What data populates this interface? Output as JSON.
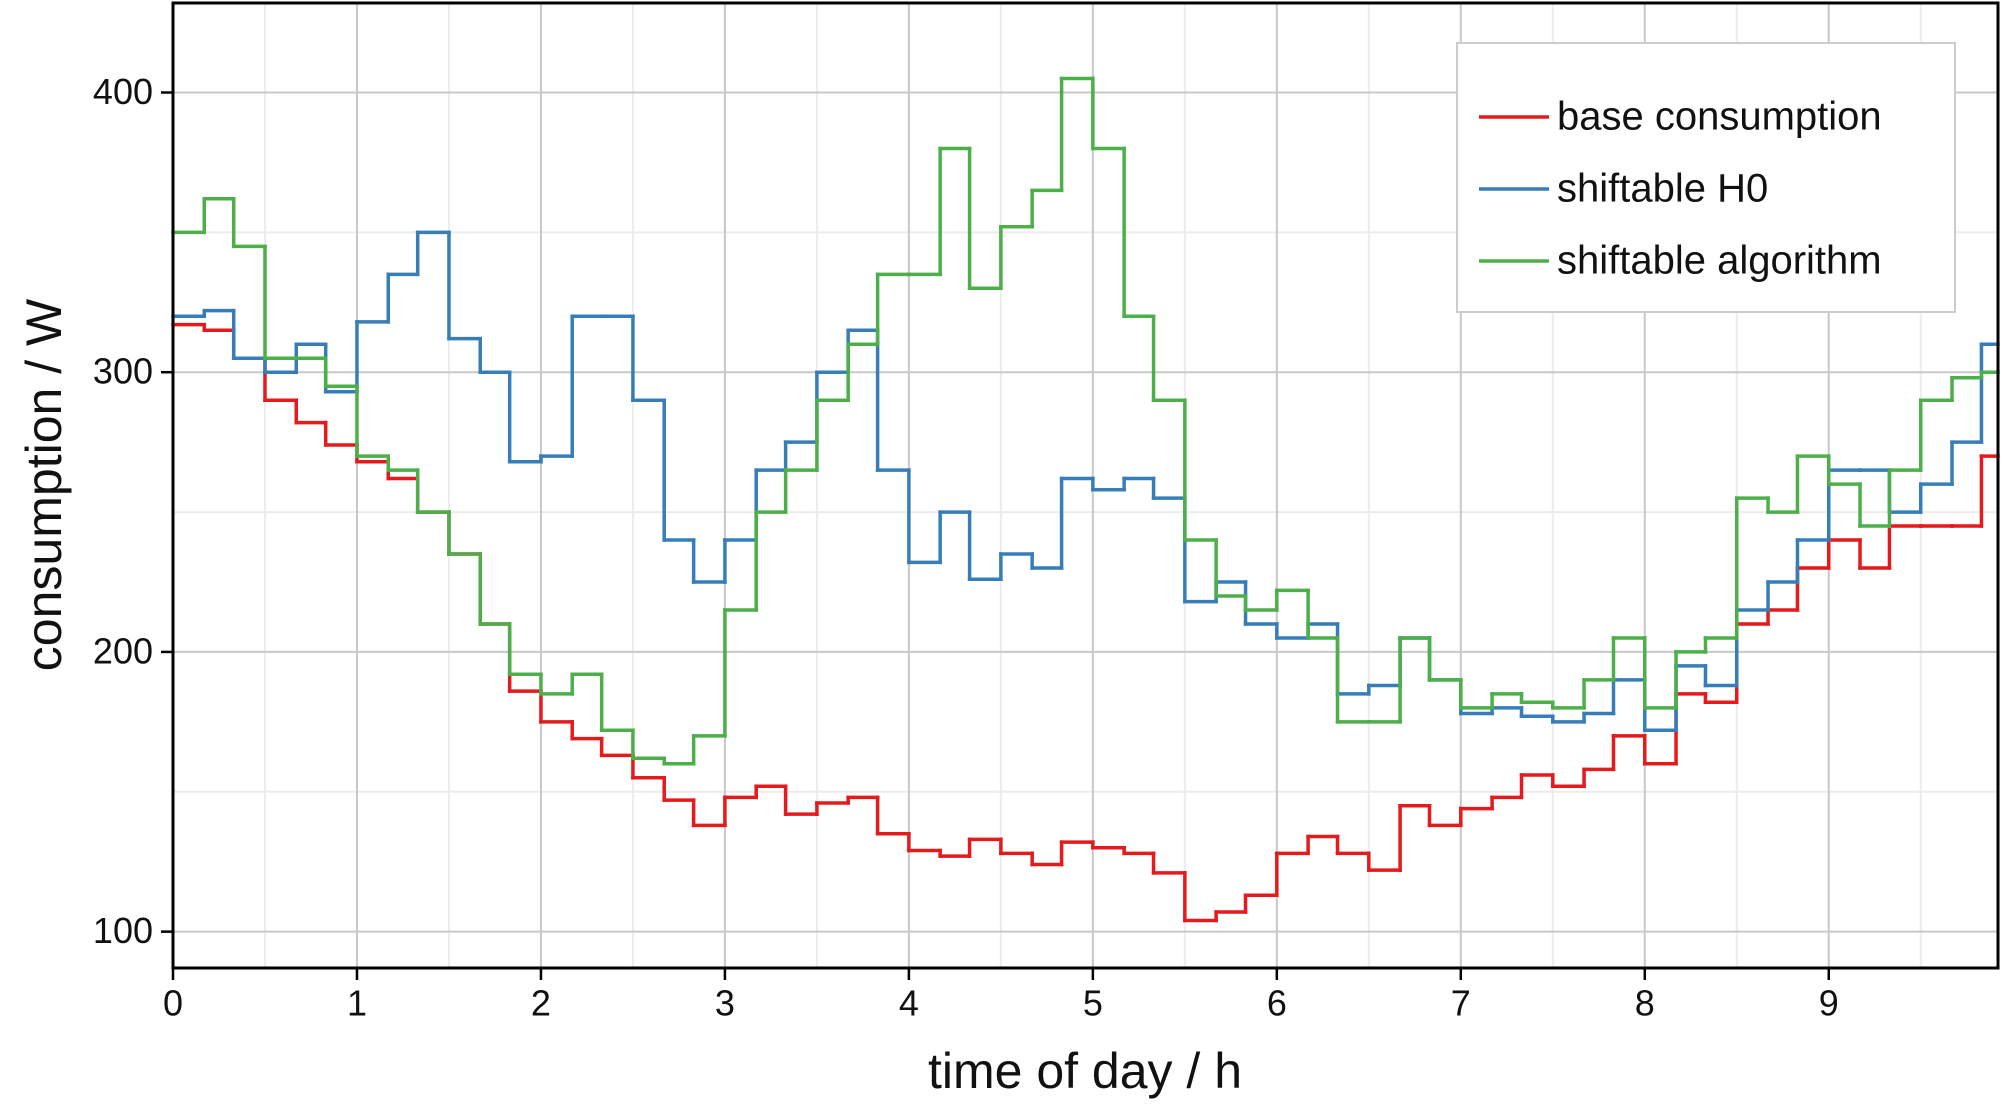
{
  "chart_data": {
    "type": "step",
    "xlabel": "time of day / h",
    "ylabel": "consumption / W",
    "x": [
      0,
      0.17,
      0.33,
      0.5,
      0.67,
      0.83,
      1,
      1.17,
      1.33,
      1.5,
      1.67,
      1.83,
      2,
      2.17,
      2.33,
      2.5,
      2.67,
      2.83,
      3,
      3.17,
      3.33,
      3.5,
      3.67,
      3.83,
      4,
      4.17,
      4.33,
      4.5,
      4.67,
      4.83,
      5,
      5.17,
      5.33,
      5.5,
      5.67,
      5.83,
      6,
      6.17,
      6.33,
      6.5,
      6.67,
      6.83,
      7,
      7.17,
      7.33,
      7.5,
      7.67,
      7.83,
      8,
      8.17,
      8.33,
      8.5,
      8.67,
      8.83,
      9,
      9.17,
      9.33,
      9.5,
      9.67,
      9.83
    ],
    "series": [
      {
        "name": "base consumption",
        "color": "#e41a1c",
        "values": [
          317,
          315,
          305,
          290,
          282,
          274,
          268,
          262,
          250,
          235,
          210,
          186,
          175,
          169,
          163,
          155,
          147,
          138,
          148,
          152,
          142,
          146,
          148,
          135,
          129,
          127,
          133,
          128,
          124,
          132,
          130,
          128,
          121,
          104,
          107,
          113,
          128,
          134,
          128,
          122,
          145,
          138,
          144,
          148,
          156,
          152,
          158,
          170,
          160,
          185,
          182,
          210,
          215,
          230,
          240,
          230,
          245,
          245,
          245,
          270
        ]
      },
      {
        "name": "shiftable H0",
        "color": "#377eb8",
        "values": [
          320,
          322,
          305,
          300,
          310,
          293,
          318,
          335,
          350,
          312,
          300,
          268,
          270,
          320,
          320,
          290,
          240,
          225,
          240,
          265,
          275,
          300,
          315,
          265,
          232,
          250,
          226,
          235,
          230,
          262,
          258,
          262,
          255,
          218,
          225,
          210,
          205,
          210,
          185,
          188,
          205,
          190,
          178,
          180,
          177,
          175,
          178,
          190,
          172,
          195,
          188,
          215,
          225,
          240,
          265,
          265,
          250,
          260,
          275,
          310
        ]
      },
      {
        "name": "shiftable algorithm",
        "color": "#4daf4a",
        "values": [
          350,
          362,
          345,
          305,
          305,
          295,
          270,
          265,
          250,
          235,
          210,
          192,
          185,
          192,
          172,
          162,
          160,
          170,
          215,
          250,
          265,
          290,
          310,
          335,
          335,
          380,
          330,
          352,
          365,
          405,
          380,
          320,
          290,
          240,
          220,
          215,
          222,
          205,
          175,
          175,
          205,
          190,
          180,
          185,
          182,
          180,
          190,
          205,
          180,
          200,
          205,
          255,
          250,
          270,
          260,
          245,
          265,
          290,
          298,
          300
        ]
      }
    ],
    "xlim": [
      0,
      9.92
    ],
    "xticks": [
      0,
      1,
      2,
      3,
      4,
      5,
      6,
      7,
      8,
      9
    ],
    "ylim": [
      87,
      432
    ],
    "yticks": [
      100,
      200,
      300,
      400
    ],
    "grid": true,
    "legend": "upper right"
  }
}
